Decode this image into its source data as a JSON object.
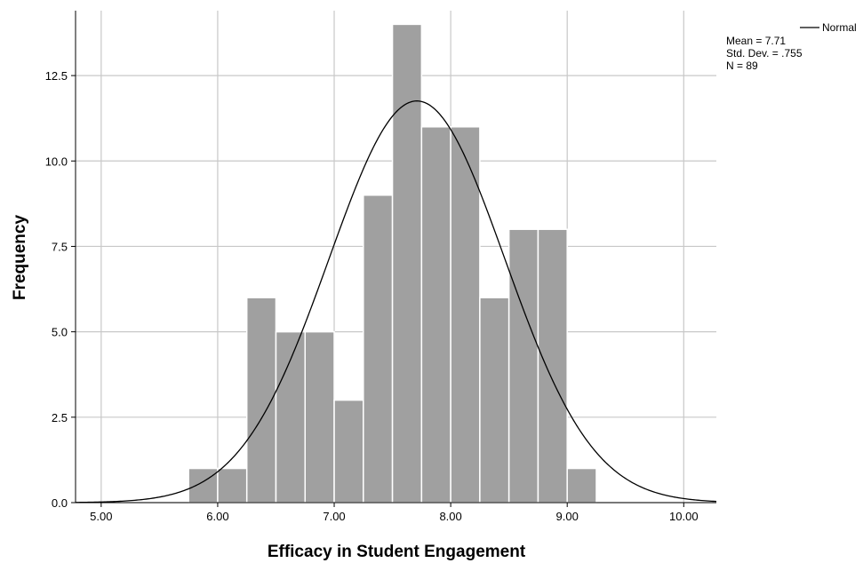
{
  "chart_data": {
    "type": "histogram",
    "xlabel": "Efficacy in Student Engagement",
    "ylabel": "Frequency",
    "xlim": [
      4.78,
      10.28
    ],
    "ylim": [
      0,
      14.4
    ],
    "x_ticks": [
      "5.00",
      "6.00",
      "7.00",
      "8.00",
      "9.00",
      "10.00"
    ],
    "y_ticks": [
      "0.0",
      "2.5",
      "5.0",
      "7.5",
      "10.0",
      "12.5"
    ],
    "grid": true,
    "bin_width": 0.25,
    "bins": [
      {
        "start": 5.75,
        "end": 6.0,
        "count": 1
      },
      {
        "start": 6.0,
        "end": 6.25,
        "count": 1
      },
      {
        "start": 6.25,
        "end": 6.5,
        "count": 6
      },
      {
        "start": 6.5,
        "end": 6.75,
        "count": 5
      },
      {
        "start": 6.75,
        "end": 7.0,
        "count": 5
      },
      {
        "start": 7.0,
        "end": 7.25,
        "count": 3
      },
      {
        "start": 7.25,
        "end": 7.5,
        "count": 9
      },
      {
        "start": 7.5,
        "end": 7.75,
        "count": 14
      },
      {
        "start": 7.75,
        "end": 8.0,
        "count": 11
      },
      {
        "start": 8.0,
        "end": 8.25,
        "count": 11
      },
      {
        "start": 8.25,
        "end": 8.5,
        "count": 6
      },
      {
        "start": 8.5,
        "end": 8.75,
        "count": 8
      },
      {
        "start": 8.75,
        "end": 9.0,
        "count": 8
      },
      {
        "start": 9.0,
        "end": 9.25,
        "count": 1
      }
    ],
    "normal_curve": {
      "name": "Normal",
      "mean": 7.71,
      "std": 0.755,
      "n": 89
    },
    "bar_color": "#a0a0a0",
    "curve_color": "#000000",
    "legend": {
      "placement": "top-right",
      "series_label": "Normal",
      "stats": [
        "Mean = 7.71",
        "Std. Dev. = .755",
        "N = 89"
      ]
    }
  }
}
